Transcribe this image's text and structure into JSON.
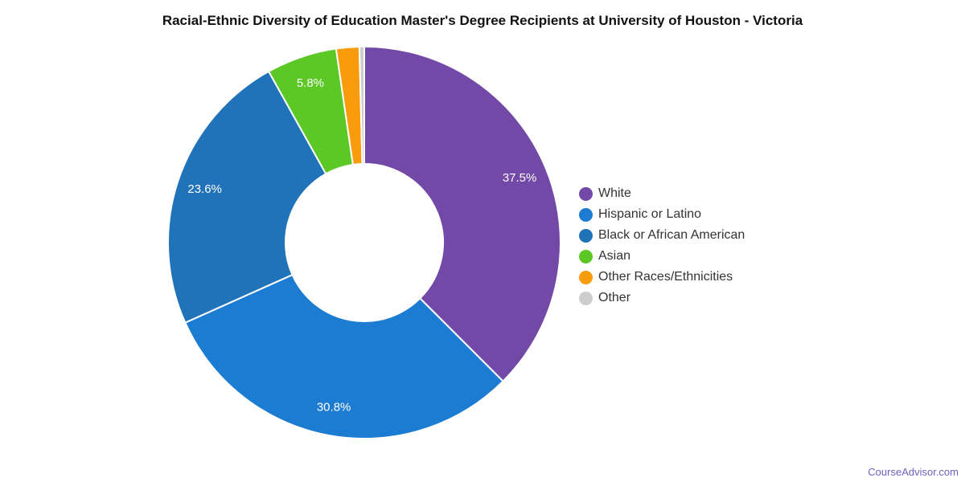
{
  "page": {
    "attribution": "CourseAdvisor.com"
  },
  "chart_data": {
    "type": "pie",
    "subtype": "donut",
    "title": "Racial-Ethnic Diversity of Education Master's Degree Recipients at University of Houston - Victoria",
    "legend_position": "right",
    "start_angle_deg": 0,
    "direction": "clockwise",
    "outer_radius_px": 244,
    "inner_radius_px": 98,
    "label_radius_px": 209,
    "slice_border_color": "#ffffff",
    "slices": [
      {
        "label": "White",
        "value": 37.5,
        "display_label": "37.5%",
        "label_visible": true,
        "color": "#7349a7"
      },
      {
        "label": "Hispanic or Latino",
        "value": 30.8,
        "display_label": "30.8%",
        "label_visible": true,
        "color": "#1b7cd1"
      },
      {
        "label": "Black or African American",
        "value": 23.6,
        "display_label": "23.6%",
        "label_visible": true,
        "color": "#2173b9"
      },
      {
        "label": "Asian",
        "value": 5.8,
        "display_label": "5.8%",
        "label_visible": true,
        "color": "#5bc826"
      },
      {
        "label": "Other Races/Ethnicities",
        "value": 1.9,
        "display_label": "",
        "label_visible": false,
        "color": "#f89c0e"
      },
      {
        "label": "Other",
        "value": 0.4,
        "display_label": "",
        "label_visible": false,
        "color": "#cdcdcd"
      }
    ]
  }
}
